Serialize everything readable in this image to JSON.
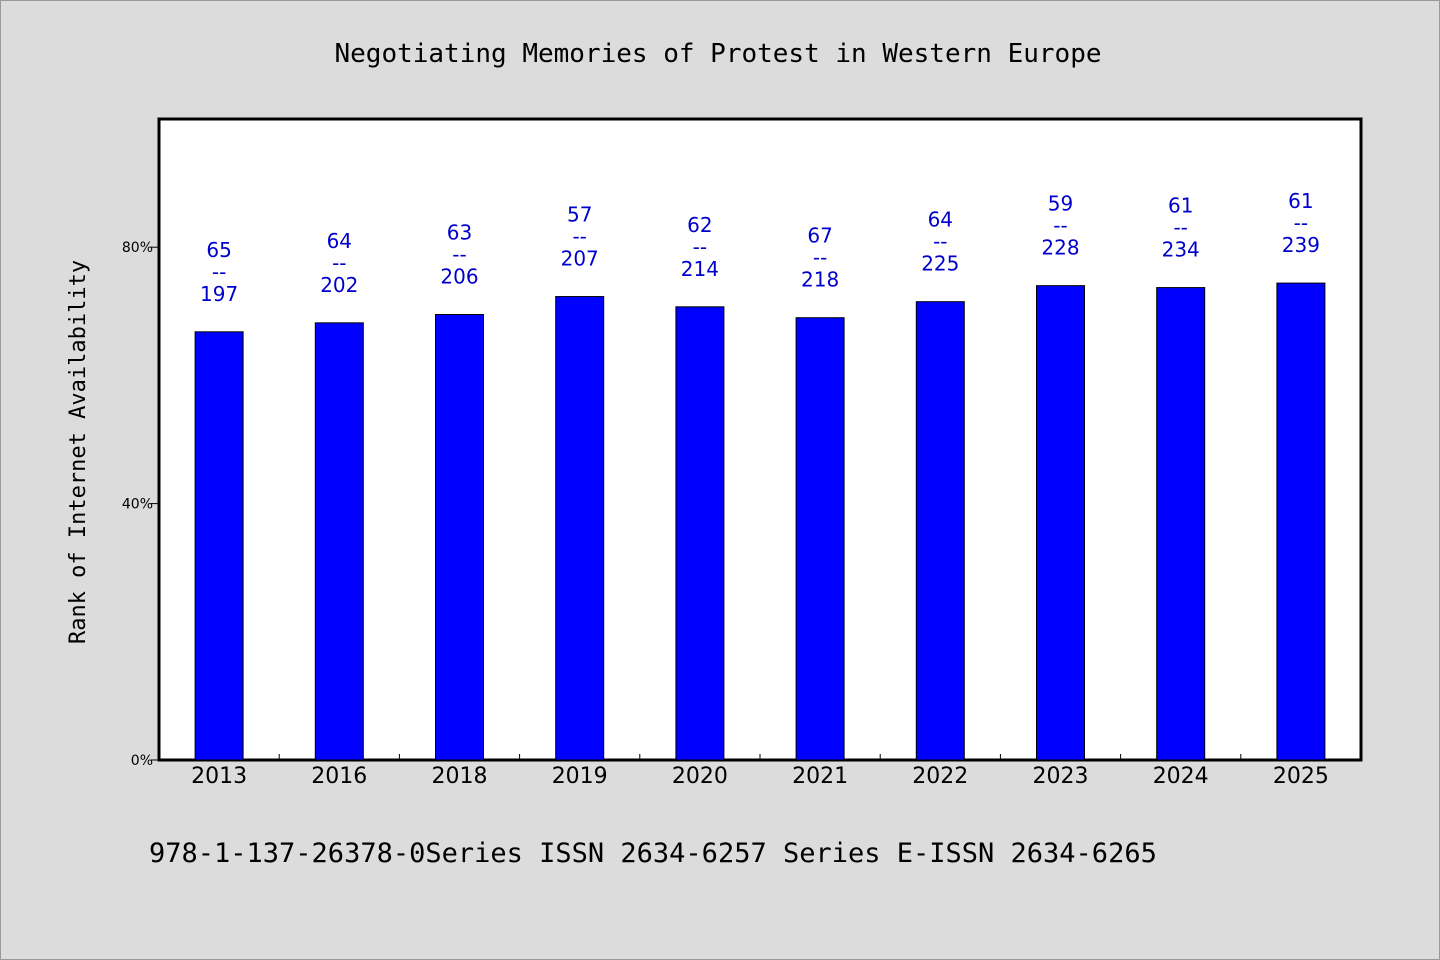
{
  "chart_data": {
    "type": "bar",
    "title": "Negotiating Memories of Protest in Western Europe",
    "ylabel": "Rank of Internet Availability",
    "xlabel": "",
    "ylim": [
      0,
      100
    ],
    "yticks": [
      {
        "value": 0,
        "label": "0%"
      },
      {
        "value": 40,
        "label": "40%"
      },
      {
        "value": 80,
        "label": "80%"
      }
    ],
    "categories": [
      "2013",
      "2016",
      "2018",
      "2019",
      "2020",
      "2021",
      "2022",
      "2023",
      "2024",
      "2025"
    ],
    "values": [
      66.8,
      68.2,
      69.5,
      72.3,
      70.7,
      69.0,
      71.5,
      74.0,
      73.7,
      74.4
    ],
    "data_labels": [
      [
        "65",
        "--",
        "197"
      ],
      [
        "64",
        "--",
        "202"
      ],
      [
        "63",
        "--",
        "206"
      ],
      [
        "57",
        "--",
        "207"
      ],
      [
        "62",
        "--",
        "214"
      ],
      [
        "67",
        "--",
        "218"
      ],
      [
        "64",
        "--",
        "225"
      ],
      [
        "59",
        "--",
        "228"
      ],
      [
        "61",
        "--",
        "234"
      ],
      [
        "61",
        "--",
        "239"
      ]
    ],
    "bar_color": "#0000ff",
    "label_color": "#0000cc",
    "grid": false,
    "legend": "none"
  },
  "footer": {
    "text": "978-1-137-26378-0Series ISSN 2634-6257 Series E-ISSN 2634-6265"
  }
}
